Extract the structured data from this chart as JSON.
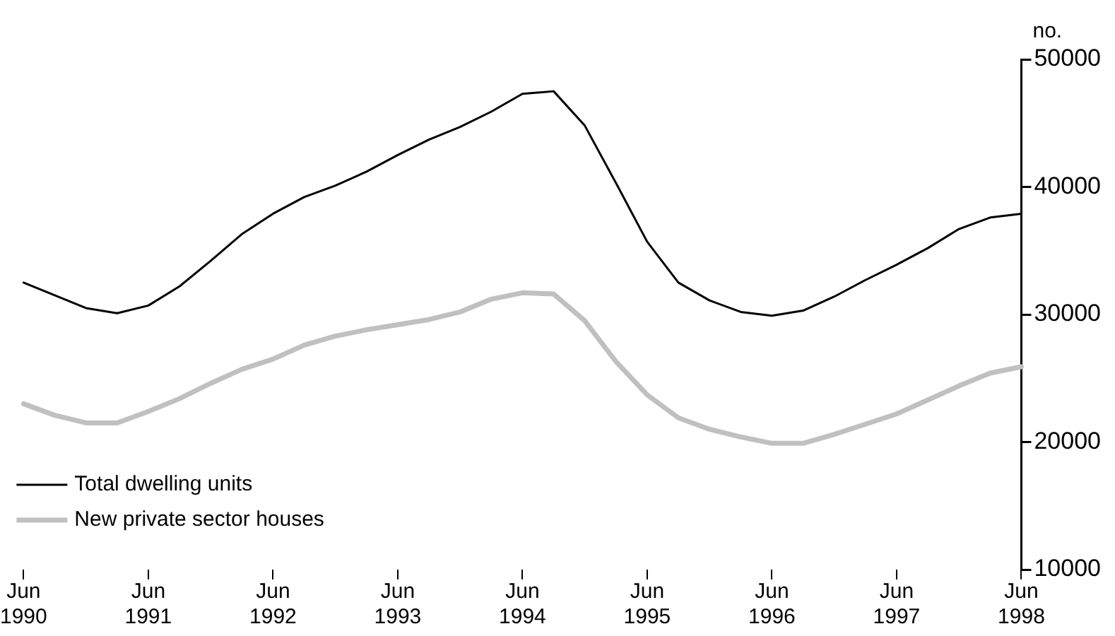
{
  "chart_data": {
    "type": "line",
    "ylabel": "no.",
    "categories": [
      "Jun 1990",
      null,
      null,
      null,
      "Jun 1991",
      null,
      null,
      null,
      "Jun 1992",
      null,
      null,
      null,
      "Jun 1993",
      null,
      null,
      null,
      "Jun 1994",
      null,
      null,
      null,
      "Jun 1995",
      null,
      null,
      null,
      "Jun 1996",
      null,
      null,
      null,
      "Jun 1997",
      null,
      null,
      null,
      "Jun 1998"
    ],
    "series": [
      {
        "name": "Total dwelling units",
        "color": "#000000",
        "values": [
          32500,
          31500,
          30500,
          30100,
          30700,
          32200,
          34200,
          36300,
          37900,
          39200,
          40100,
          41200,
          42500,
          43700,
          44700,
          45900,
          47300,
          47500,
          44800,
          40300,
          35700,
          32500,
          31100,
          30200,
          29900,
          30300,
          31400,
          32700,
          33900,
          35200,
          36700,
          37600,
          37900
        ]
      },
      {
        "name": "New private sector houses",
        "color": "#c0c0c0",
        "values": [
          23000,
          22100,
          21500,
          21500,
          22400,
          23400,
          24600,
          25700,
          26500,
          27600,
          28300,
          28800,
          29200,
          29600,
          30200,
          31200,
          31700,
          31600,
          29500,
          26300,
          23700,
          21900,
          21000,
          20400,
          19900,
          19900,
          20600,
          21400,
          22200,
          23300,
          24400,
          25400,
          25900
        ]
      }
    ],
    "ylim": [
      10000,
      50000
    ],
    "yticks": [
      10000,
      20000,
      30000,
      40000,
      50000
    ],
    "grid": false,
    "legend": "bottom left",
    "marker": "none",
    "line_style": "solid"
  }
}
